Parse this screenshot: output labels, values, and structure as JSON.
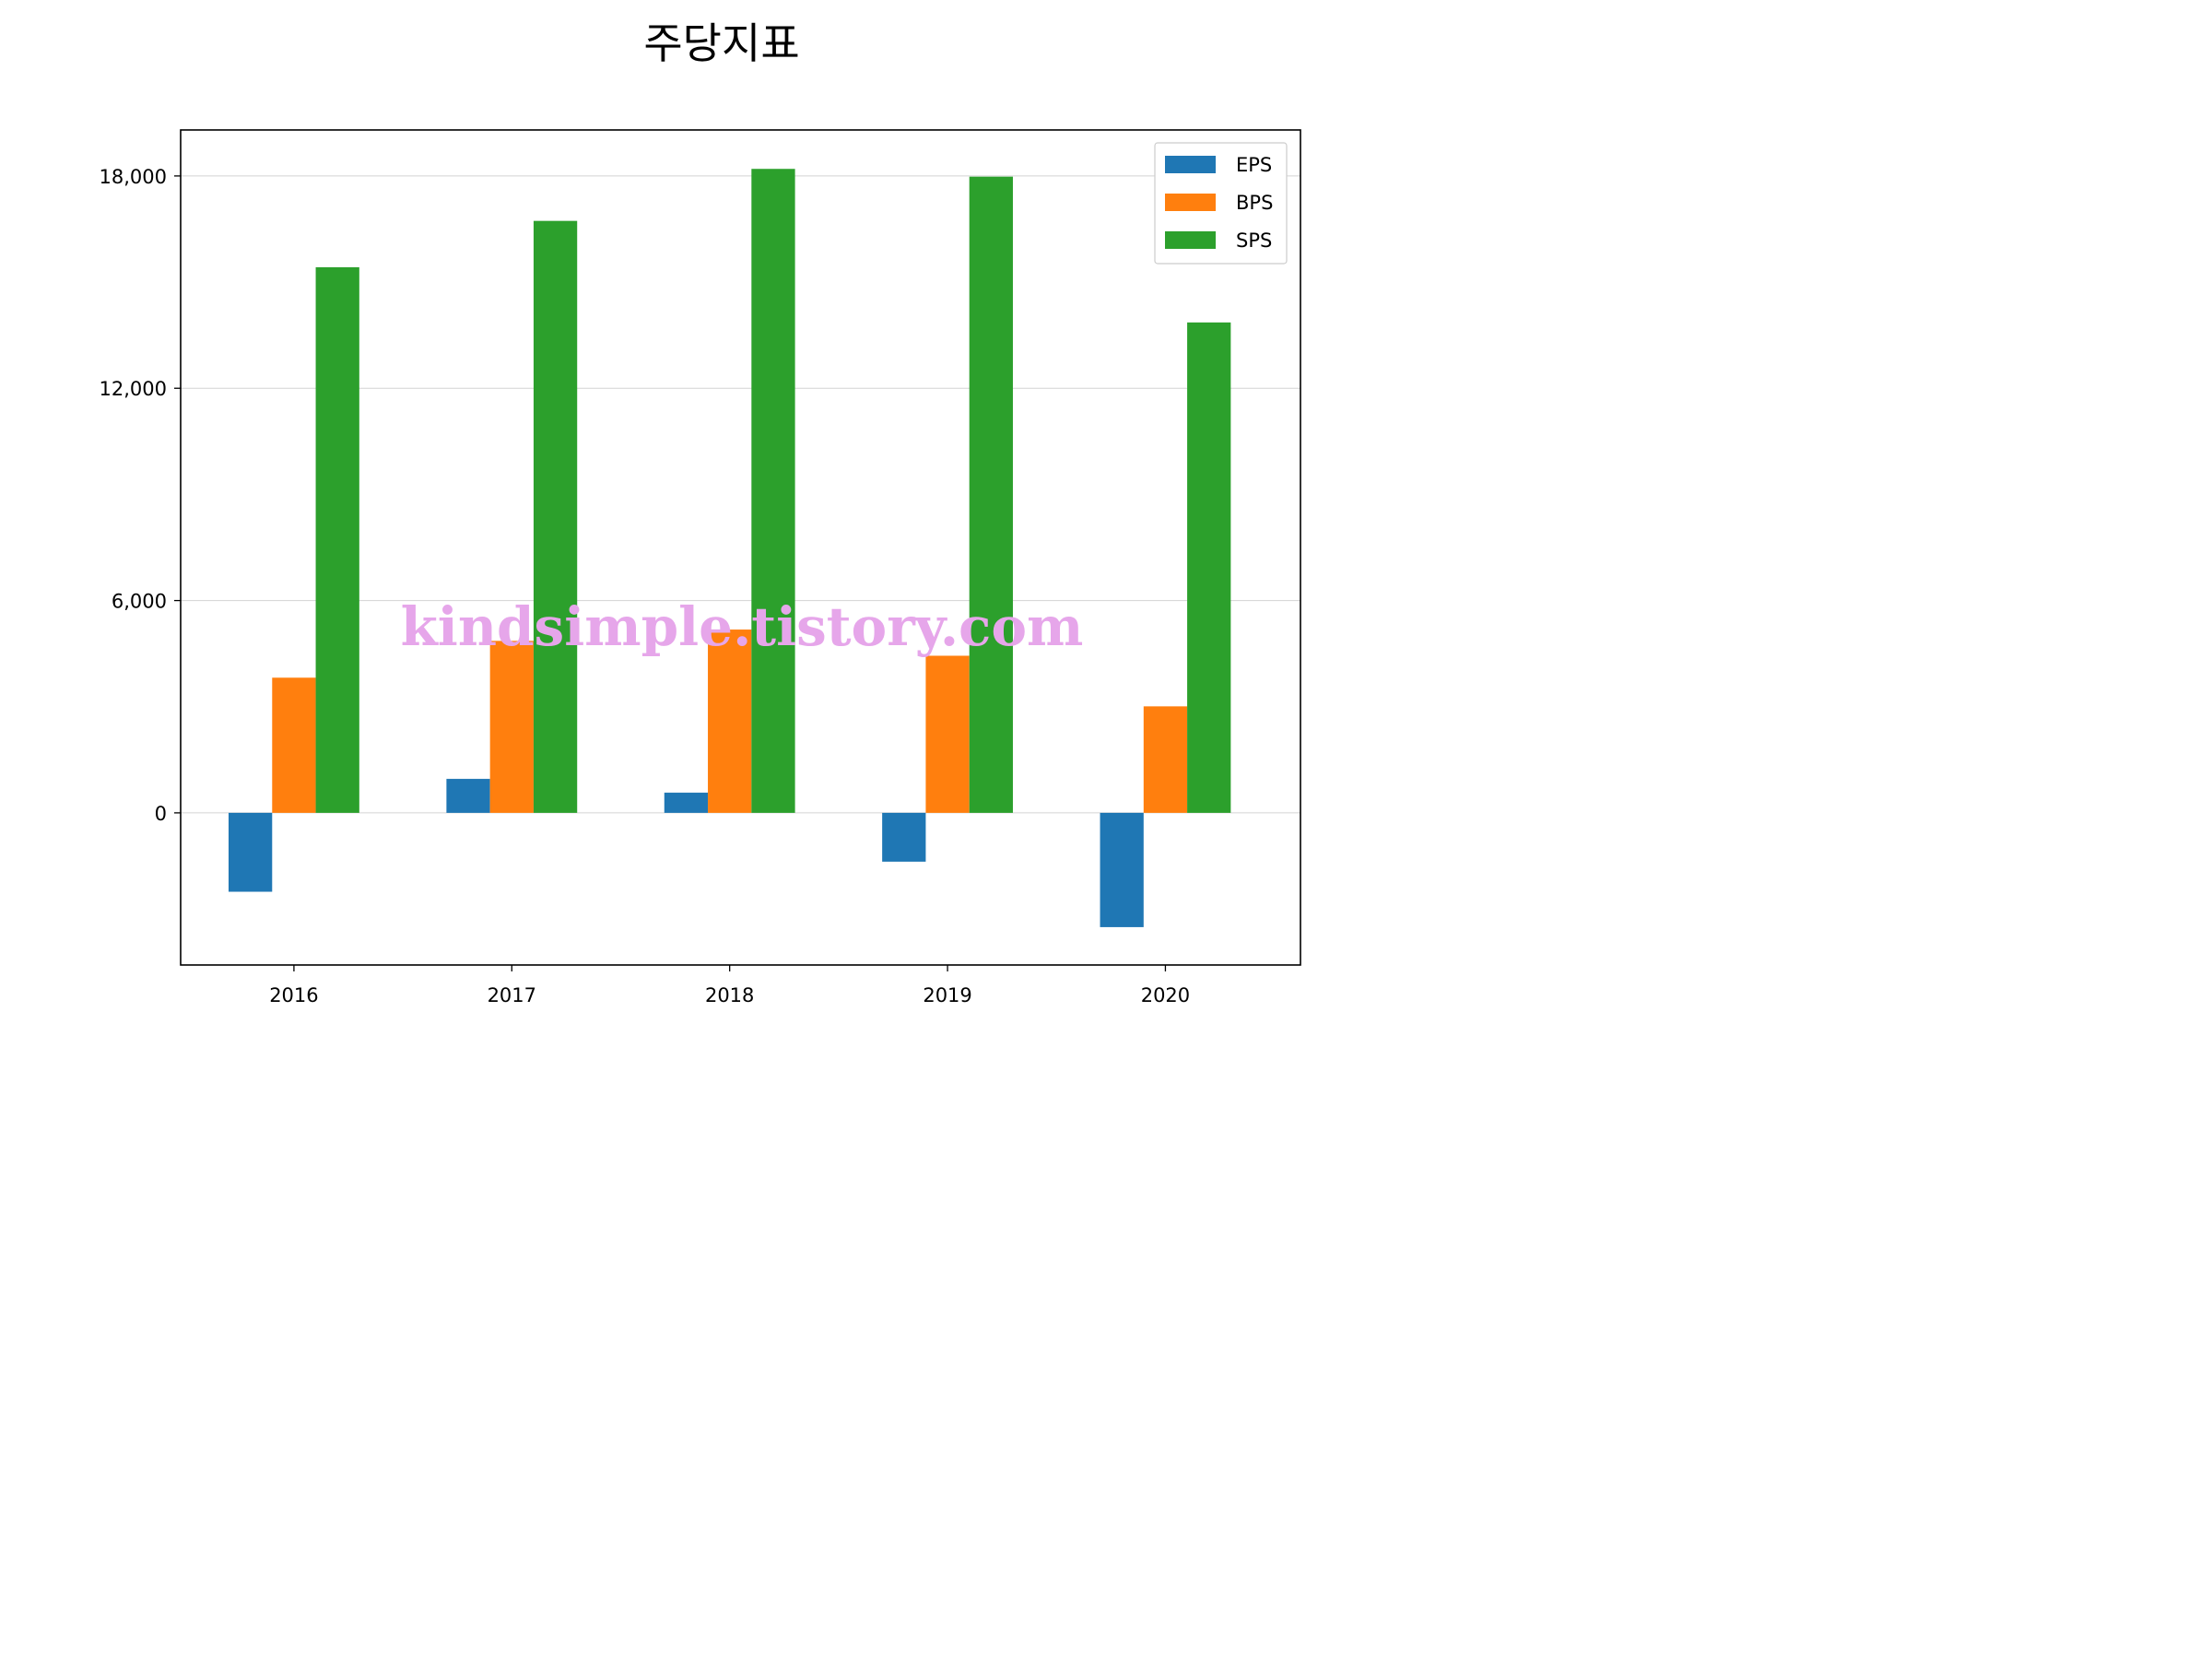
{
  "chart_data": {
    "type": "bar",
    "title": "주당지표",
    "xlabel": "",
    "ylabel": "",
    "categories": [
      "2016",
      "2017",
      "2018",
      "2019",
      "2020"
    ],
    "series": [
      {
        "name": "EPS",
        "color": "#1f77b4",
        "values": [
          -2230,
          960,
          570,
          -1380,
          -3230
        ]
      },
      {
        "name": "BPS",
        "color": "#ff7f0e",
        "values": [
          3820,
          4860,
          5180,
          4440,
          3010
        ]
      },
      {
        "name": "SPS",
        "color": "#2ca02c",
        "values": [
          15420,
          16730,
          18200,
          17980,
          13860
        ]
      }
    ],
    "ylim": [
      -4300,
      19300
    ],
    "yticks": [
      0,
      6000,
      12000,
      18000
    ],
    "ytick_labels": [
      "0",
      "6,000",
      "12,000",
      "18,000"
    ],
    "grid": "horizontal",
    "legend_position": "top-right"
  },
  "watermark": "kindsimple.tistory.com"
}
